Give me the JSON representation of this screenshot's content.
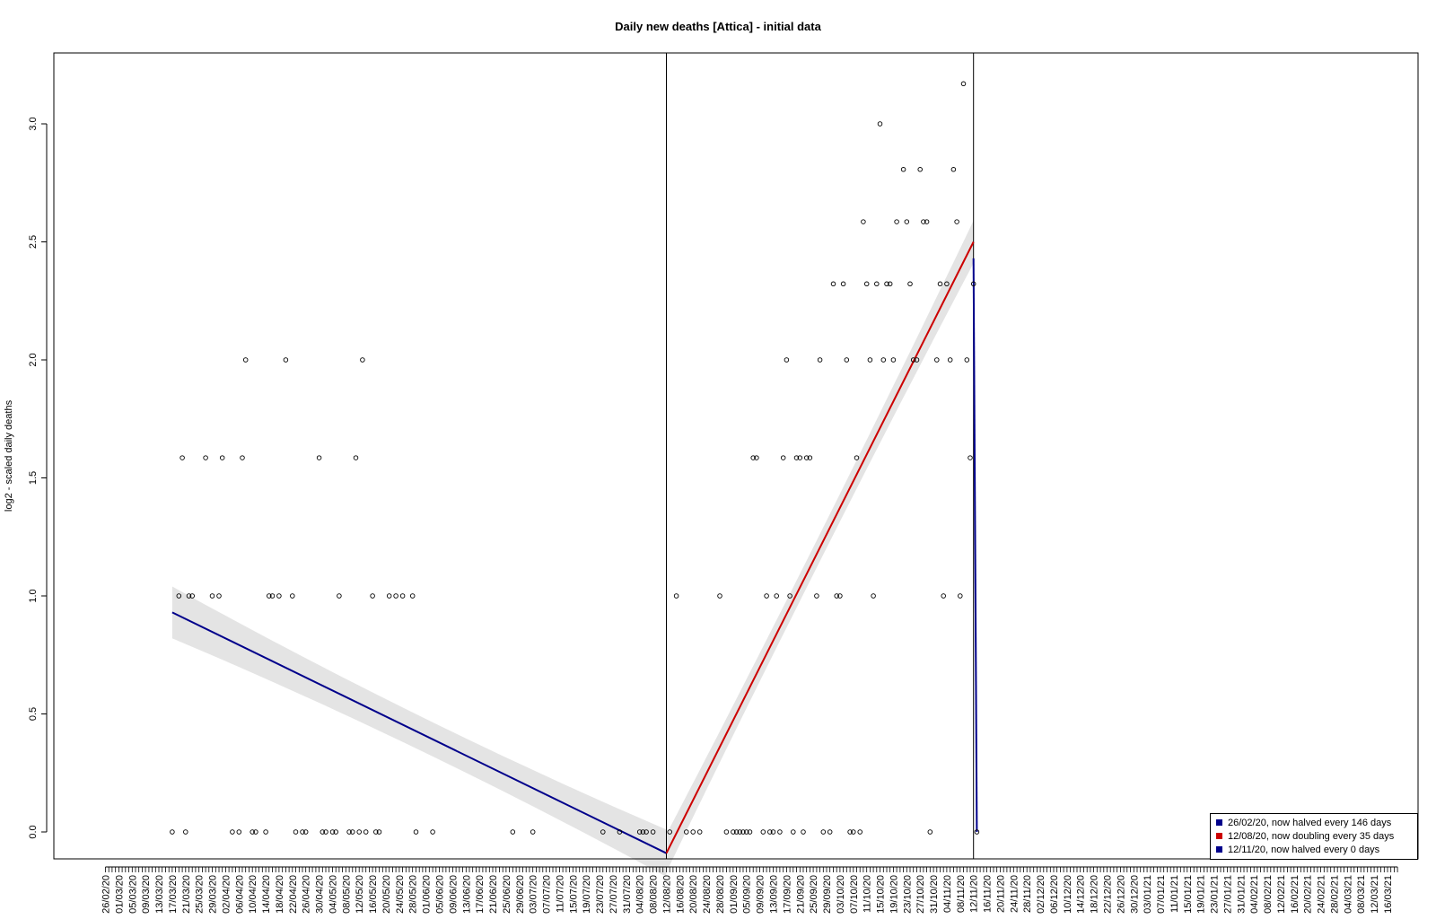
{
  "chart_data": {
    "type": "scatter",
    "title": "Daily new deaths [Attica] - initial data",
    "ylabel": "log2 - scaled daily deaths",
    "xlabel": "",
    "ylim": [
      -0.1,
      3.3
    ],
    "yticks": [
      0.0,
      0.5,
      1.0,
      1.5,
      2.0,
      2.5,
      3.0
    ],
    "ytick_labels": [
      "0.0",
      "0.5",
      "1.0",
      "1.5",
      "2.0",
      "2.5",
      "3.0"
    ],
    "x_axis": {
      "first_tick": "2020-02-26",
      "last_tick": "2021-03-19",
      "minor_tick_step_days": 1,
      "label_every_days": 4
    },
    "breakpoints": [
      "2020-08-12",
      "2020-11-12"
    ],
    "points": [
      [
        "2020-03-17",
        0
      ],
      [
        "2020-03-19",
        1
      ],
      [
        "2020-03-20",
        1.585
      ],
      [
        "2020-03-21",
        0
      ],
      [
        "2020-03-22",
        1
      ],
      [
        "2020-03-23",
        1
      ],
      [
        "2020-03-27",
        1.585
      ],
      [
        "2020-03-29",
        1
      ],
      [
        "2020-03-31",
        1
      ],
      [
        "2020-04-01",
        1.585
      ],
      [
        "2020-04-04",
        0
      ],
      [
        "2020-04-06",
        0
      ],
      [
        "2020-04-07",
        1.585
      ],
      [
        "2020-04-08",
        2
      ],
      [
        "2020-04-10",
        0
      ],
      [
        "2020-04-11",
        0
      ],
      [
        "2020-04-14",
        0
      ],
      [
        "2020-04-15",
        1
      ],
      [
        "2020-04-16",
        1
      ],
      [
        "2020-04-18",
        1
      ],
      [
        "2020-04-20",
        2
      ],
      [
        "2020-04-22",
        1
      ],
      [
        "2020-04-23",
        0
      ],
      [
        "2020-04-25",
        0
      ],
      [
        "2020-04-26",
        0
      ],
      [
        "2020-04-30",
        1.585
      ],
      [
        "2020-05-01",
        0
      ],
      [
        "2020-05-02",
        0
      ],
      [
        "2020-05-04",
        0
      ],
      [
        "2020-05-05",
        0
      ],
      [
        "2020-05-06",
        1
      ],
      [
        "2020-05-09",
        0
      ],
      [
        "2020-05-10",
        0
      ],
      [
        "2020-05-11",
        1.585
      ],
      [
        "2020-05-12",
        0
      ],
      [
        "2020-05-13",
        2
      ],
      [
        "2020-05-14",
        0
      ],
      [
        "2020-05-16",
        1
      ],
      [
        "2020-05-17",
        0
      ],
      [
        "2020-05-18",
        0
      ],
      [
        "2020-05-21",
        1
      ],
      [
        "2020-05-23",
        1
      ],
      [
        "2020-05-25",
        1
      ],
      [
        "2020-05-28",
        1
      ],
      [
        "2020-05-29",
        0
      ],
      [
        "2020-06-03",
        0
      ],
      [
        "2020-06-27",
        0
      ],
      [
        "2020-07-03",
        0
      ],
      [
        "2020-07-24",
        0
      ],
      [
        "2020-07-29",
        0
      ],
      [
        "2020-08-04",
        0
      ],
      [
        "2020-08-05",
        0
      ],
      [
        "2020-08-06",
        0
      ],
      [
        "2020-08-08",
        0
      ],
      [
        "2020-08-13",
        0
      ],
      [
        "2020-08-15",
        1
      ],
      [
        "2020-08-18",
        0
      ],
      [
        "2020-08-20",
        0
      ],
      [
        "2020-08-22",
        0
      ],
      [
        "2020-08-28",
        1
      ],
      [
        "2020-08-30",
        0
      ],
      [
        "2020-09-01",
        0
      ],
      [
        "2020-09-02",
        0
      ],
      [
        "2020-09-03",
        0
      ],
      [
        "2020-09-04",
        0
      ],
      [
        "2020-09-05",
        0
      ],
      [
        "2020-09-06",
        0
      ],
      [
        "2020-09-07",
        1.585
      ],
      [
        "2020-09-08",
        1.585
      ],
      [
        "2020-09-10",
        0
      ],
      [
        "2020-09-11",
        1
      ],
      [
        "2020-09-12",
        0
      ],
      [
        "2020-09-13",
        0
      ],
      [
        "2020-09-14",
        1
      ],
      [
        "2020-09-15",
        0
      ],
      [
        "2020-09-16",
        1.585
      ],
      [
        "2020-09-17",
        2
      ],
      [
        "2020-09-18",
        1
      ],
      [
        "2020-09-19",
        0
      ],
      [
        "2020-09-20",
        1.585
      ],
      [
        "2020-09-21",
        1.585
      ],
      [
        "2020-09-22",
        0
      ],
      [
        "2020-09-23",
        1.585
      ],
      [
        "2020-09-24",
        1.585
      ],
      [
        "2020-09-26",
        1
      ],
      [
        "2020-09-27",
        2
      ],
      [
        "2020-09-28",
        0
      ],
      [
        "2020-09-30",
        0
      ],
      [
        "2020-10-01",
        2.322
      ],
      [
        "2020-10-02",
        1
      ],
      [
        "2020-10-03",
        1
      ],
      [
        "2020-10-04",
        2.322
      ],
      [
        "2020-10-05",
        2
      ],
      [
        "2020-10-06",
        0
      ],
      [
        "2020-10-07",
        0
      ],
      [
        "2020-10-08",
        1.585
      ],
      [
        "2020-10-09",
        0
      ],
      [
        "2020-10-10",
        2.585
      ],
      [
        "2020-10-11",
        2.322
      ],
      [
        "2020-10-12",
        2
      ],
      [
        "2020-10-13",
        1
      ],
      [
        "2020-10-14",
        2.322
      ],
      [
        "2020-10-15",
        3
      ],
      [
        "2020-10-16",
        2
      ],
      [
        "2020-10-17",
        2.322
      ],
      [
        "2020-10-18",
        2.322
      ],
      [
        "2020-10-19",
        2
      ],
      [
        "2020-10-20",
        2.585
      ],
      [
        "2020-10-22",
        2.807
      ],
      [
        "2020-10-23",
        2.585
      ],
      [
        "2020-10-24",
        2.322
      ],
      [
        "2020-10-25",
        2
      ],
      [
        "2020-10-26",
        2
      ],
      [
        "2020-10-27",
        2.807
      ],
      [
        "2020-10-28",
        2.585
      ],
      [
        "2020-10-29",
        2.585
      ],
      [
        "2020-10-30",
        0
      ],
      [
        "2020-11-01",
        2
      ],
      [
        "2020-11-02",
        2.322
      ],
      [
        "2020-11-03",
        1
      ],
      [
        "2020-11-04",
        2.322
      ],
      [
        "2020-11-05",
        2
      ],
      [
        "2020-11-06",
        2.807
      ],
      [
        "2020-11-07",
        2.585
      ],
      [
        "2020-11-08",
        1
      ],
      [
        "2020-11-09",
        3.17
      ],
      [
        "2020-11-10",
        2
      ],
      [
        "2020-11-11",
        1.585
      ],
      [
        "2020-11-12",
        2.322
      ],
      [
        "2020-11-13",
        0
      ]
    ],
    "series": [
      {
        "start": "2020-03-17",
        "end": "2020-08-12",
        "y_start": 0.93,
        "y_end": -0.09,
        "ci_halfwidth_start": 0.11,
        "ci_halfwidth_mid": 0.04,
        "ci_halfwidth_end": 0.1,
        "color": "#00008b"
      },
      {
        "start": "2020-08-12",
        "end": "2020-11-12",
        "y_start": -0.09,
        "y_end": 2.5,
        "ci_halfwidth_start": 0.08,
        "ci_halfwidth_mid": 0.03,
        "ci_halfwidth_end": 0.09,
        "color": "#cc0000"
      },
      {
        "start": "2020-11-12",
        "end": "2020-11-13",
        "y_start": 2.43,
        "y_end": 0,
        "ci_halfwidth_start": 0,
        "ci_halfwidth_mid": 0,
        "ci_halfwidth_end": 0,
        "color": "#00008b"
      }
    ],
    "legend": {
      "placement": "bottom-right",
      "entries": [
        {
          "label": "26/02/20, now halved every 146 days",
          "color": "#00008b"
        },
        {
          "label": "12/08/20, now doubling every 35 days",
          "color": "#cc0000"
        },
        {
          "label": "12/11/20, now halved every 0 days",
          "color": "#00008b"
        }
      ]
    },
    "grid": false,
    "ci_color": "#e4e4e4"
  }
}
